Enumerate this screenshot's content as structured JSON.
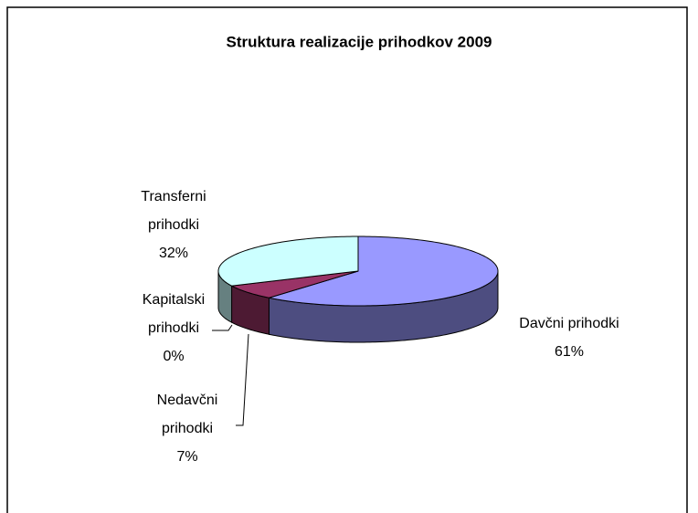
{
  "chart_data": {
    "type": "pie3d",
    "title": "Struktura realizacije prihodkov 2009",
    "categories": [
      "Davčni prihodki",
      "Nedavčni prihodki",
      "Kapitalski prihodki",
      "Transferni prihodki"
    ],
    "values": [
      61,
      7,
      0,
      32
    ],
    "value_labels": [
      "61%",
      "7%",
      "0%",
      "32%"
    ],
    "colors": [
      "#9999ff",
      "#993366",
      "#a8c8c8",
      "#ccffff"
    ]
  }
}
